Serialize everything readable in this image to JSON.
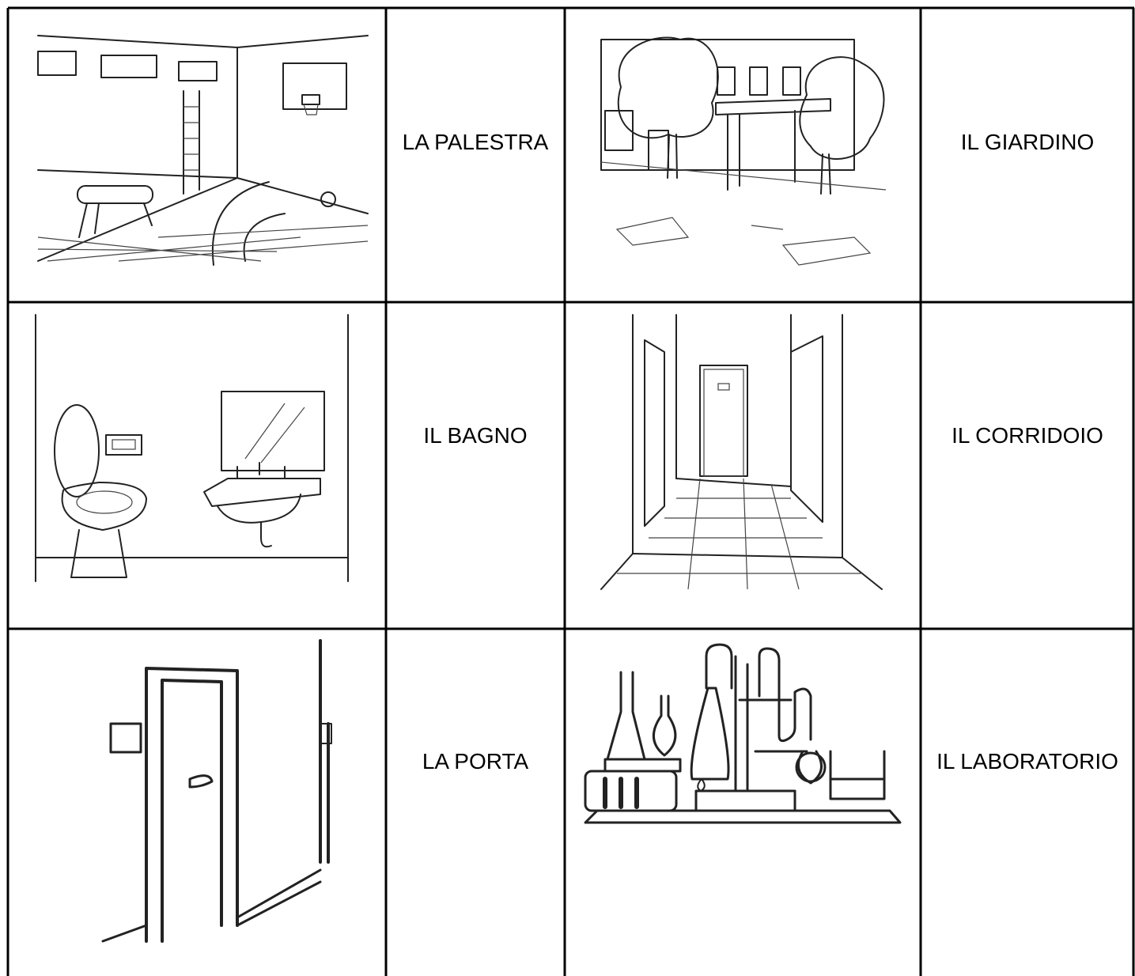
{
  "table": {
    "rows": [
      [
        "LA PALESTRA",
        "IL GIARDINO"
      ],
      [
        "IL BAGNO",
        "IL CORRIDOIO"
      ],
      [
        "LA PORTA",
        "IL LABORATORIO"
      ]
    ]
  }
}
